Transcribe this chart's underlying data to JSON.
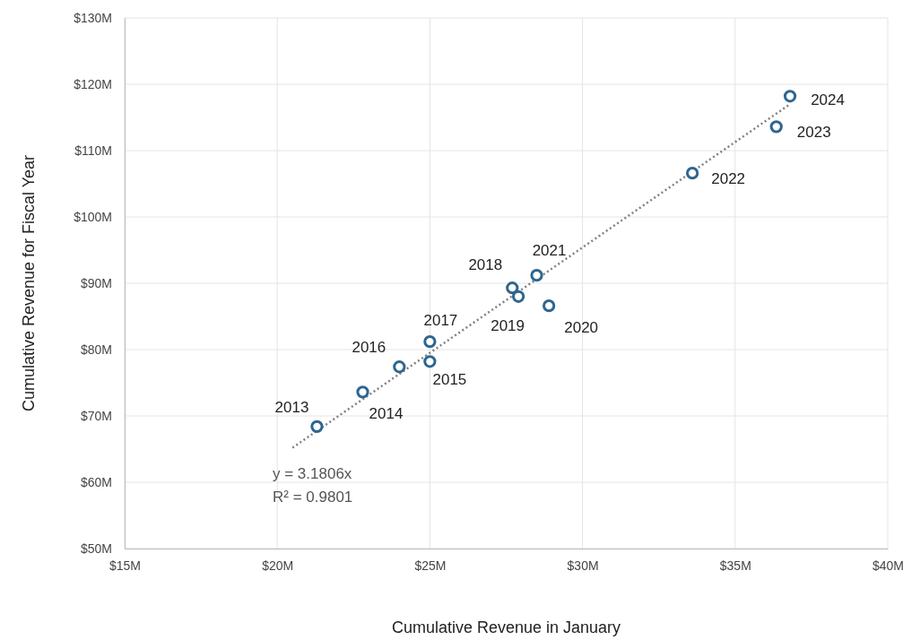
{
  "chart_data": {
    "type": "scatter",
    "xlabel": "Cumulative Revenue in January",
    "ylabel": "Cumulative Revenue for Fiscal Year",
    "xlim": [
      15,
      40
    ],
    "xticks": [
      {
        "value": 15,
        "label": "$15M"
      },
      {
        "value": 20,
        "label": "$20M"
      },
      {
        "value": 25,
        "label": "$25M"
      },
      {
        "value": 30,
        "label": "$30M"
      },
      {
        "value": 35,
        "label": "$35M"
      },
      {
        "value": 40,
        "label": "$40M"
      }
    ],
    "ylim": [
      50,
      130
    ],
    "yticks": [
      {
        "value": 50,
        "label": "$50M"
      },
      {
        "value": 60,
        "label": "$60M"
      },
      {
        "value": 70,
        "label": "$70M"
      },
      {
        "value": 80,
        "label": "$80M"
      },
      {
        "value": 90,
        "label": "$90M"
      },
      {
        "value": 100,
        "label": "$100M"
      },
      {
        "value": 110,
        "label": "$110M"
      },
      {
        "value": 120,
        "label": "$120M"
      },
      {
        "value": 130,
        "label": "$130M"
      }
    ],
    "grid": true,
    "marker": "circle",
    "series": [
      {
        "color": "#2e6690",
        "x": [
          21.3,
          22.8,
          25.0,
          24.0,
          25.0,
          27.7,
          27.9,
          28.9,
          28.5,
          33.6,
          36.35,
          36.8
        ],
        "values": [
          68.4,
          73.6,
          78.2,
          77.4,
          81.2,
          89.3,
          88.0,
          86.6,
          91.2,
          106.6,
          113.6,
          118.2
        ]
      },
      {
        "type": "line",
        "color": "#808080",
        "line_style": "dotted",
        "marker": "none",
        "x": [
          20.5,
          36.8
        ],
        "values": [
          65.2,
          117.0
        ]
      }
    ],
    "annotations": [
      {
        "text": "2013",
        "x": 21.3,
        "y": 68.4
      },
      {
        "text": "2014",
        "x": 22.8,
        "y": 73.6
      },
      {
        "text": "2015",
        "x": 25.0,
        "y": 78.2
      },
      {
        "text": "2016",
        "x": 24.0,
        "y": 77.4
      },
      {
        "text": "2017",
        "x": 25.0,
        "y": 81.2
      },
      {
        "text": "2018",
        "x": 27.7,
        "y": 89.3
      },
      {
        "text": "2019",
        "x": 27.9,
        "y": 88.0
      },
      {
        "text": "2020",
        "x": 28.9,
        "y": 86.6
      },
      {
        "text": "2021",
        "x": 28.5,
        "y": 91.2
      },
      {
        "text": "2022",
        "x": 33.6,
        "y": 106.6
      },
      {
        "text": "2023",
        "x": 36.35,
        "y": 113.6
      },
      {
        "text": "2024",
        "x": 36.8,
        "y": 118.2
      },
      "y = 3.1806x",
      "R² = 0.9801"
    ]
  }
}
